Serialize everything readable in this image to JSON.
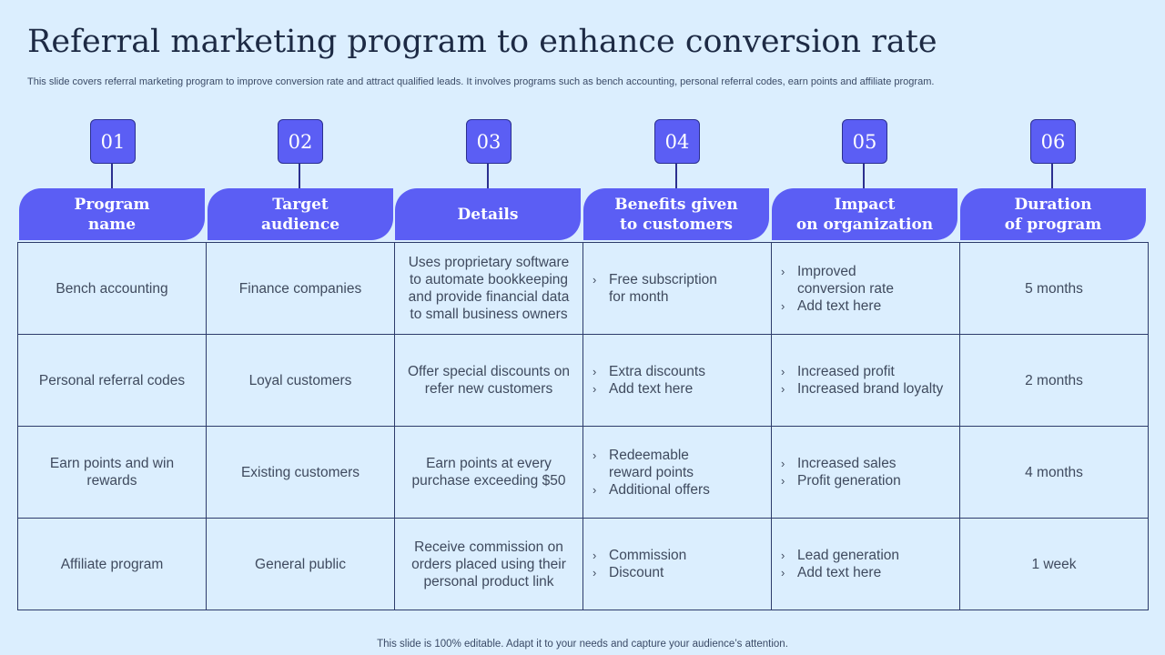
{
  "title": "Referral marketing program to enhance conversion rate",
  "subtitle": "This slide covers referral marketing program to improve conversion rate and attract qualified leads. It involves  programs such as  bench accounting, personal referral codes, earn points and affiliate program.",
  "footer": "This slide is 100% editable. Adapt it to your needs and capture your audience’s attention.",
  "columns": [
    {
      "num": "01",
      "header": "Program\nname"
    },
    {
      "num": "02",
      "header": "Target\naudience"
    },
    {
      "num": "03",
      "header": "Details"
    },
    {
      "num": "04",
      "header": "Benefits given\nto customers"
    },
    {
      "num": "05",
      "header": "Impact\non organization"
    },
    {
      "num": "06",
      "header": "Duration\nof program"
    }
  ],
  "rows": [
    {
      "program": "Bench accounting",
      "audience": "Finance companies",
      "details": "Uses proprietary software to automate bookkeeping and provide financial data to small business owners",
      "benefits": [
        "Free subscription\nfor month"
      ],
      "impact": [
        "Improved\nconversion rate",
        "Add text here"
      ],
      "duration": "5 months"
    },
    {
      "program": "Personal referral codes",
      "audience": "Loyal customers",
      "details": "Offer special discounts on refer new customers",
      "benefits": [
        "Extra discounts",
        "Add text here"
      ],
      "impact": [
        "Increased profit",
        "Increased brand loyalty"
      ],
      "duration": "2 months"
    },
    {
      "program": "Earn points and win rewards",
      "audience": "Existing customers",
      "details": "Earn points at every purchase exceeding $50",
      "benefits": [
        "Redeemable\nreward points",
        "Additional offers"
      ],
      "impact": [
        "Increased sales",
        "Profit generation"
      ],
      "duration": "4 months"
    },
    {
      "program": "Affiliate program",
      "audience": "General public",
      "details": "Receive commission on orders placed using their personal product link",
      "benefits": [
        "Commission",
        "Discount"
      ],
      "impact": [
        "Lead generation",
        "Add text here"
      ],
      "duration": "1 week"
    }
  ],
  "bullet_icon": "chevron-right-icon",
  "colors": {
    "accent": "#5b5ef4",
    "background": "#dbeefe",
    "border": "#2d3b6b"
  }
}
